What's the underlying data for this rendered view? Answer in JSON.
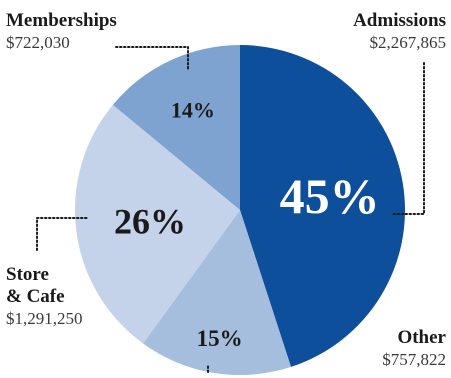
{
  "chart_data": {
    "type": "pie",
    "title": "",
    "slices": [
      {
        "key": "admissions",
        "label": "Admissions",
        "label_lines": [
          "Admissions"
        ],
        "amount": "$2,267,865",
        "percent_label": "45%",
        "value": 45,
        "color": "#0d4f9a",
        "text_color": "#ffffff"
      },
      {
        "key": "other",
        "label": "Other",
        "label_lines": [
          "Other"
        ],
        "amount": "$757,822",
        "percent_label": "15%",
        "value": 15,
        "color": "#a6bedd",
        "text_color": "#1a1a1a"
      },
      {
        "key": "store_cafe",
        "label": "Store & Cafe",
        "label_lines": [
          "Store",
          "& Cafe"
        ],
        "amount": "$1,291,250",
        "percent_label": "26%",
        "value": 26,
        "color": "#c4d3ea",
        "text_color": "#1a1a1a"
      },
      {
        "key": "memberships",
        "label": "Memberships",
        "label_lines": [
          "Memberships"
        ],
        "amount": "$722,030",
        "percent_label": "14%",
        "value": 14,
        "color": "#7ea3d0",
        "text_color": "#1a1a1a"
      }
    ]
  }
}
